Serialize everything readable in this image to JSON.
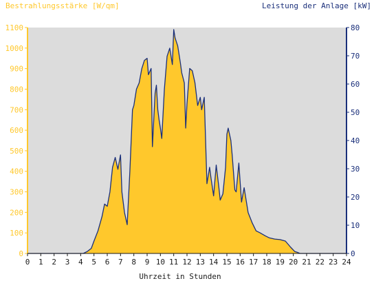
{
  "chart_data": {
    "type": "area",
    "left_axis_title": "Bestrahlungsstärke [W/qm]",
    "right_axis_title": "Leistung der Anlage [kW]",
    "xlabel": "Uhrzeit in Stunden",
    "xlim": [
      0,
      24
    ],
    "x_ticks": [
      "0",
      "1",
      "2",
      "3",
      "4",
      "5",
      "6",
      "7",
      "8",
      "9",
      "10",
      "11",
      "12",
      "13",
      "14",
      "15",
      "16",
      "17",
      "18",
      "19",
      "20",
      "21",
      "22",
      "23",
      "24"
    ],
    "y_left_lim": [
      0,
      1100
    ],
    "y_left_ticks": [
      "0",
      "100",
      "200",
      "300",
      "400",
      "500",
      "600",
      "700",
      "800",
      "900",
      "1000",
      "1100"
    ],
    "y_right_lim": [
      0,
      80
    ],
    "y_right_ticks": [
      "0",
      "10",
      "20",
      "30",
      "40",
      "50",
      "60",
      "70",
      "80"
    ],
    "grid": false,
    "plot_background": "#dcdcdc",
    "colors": {
      "irradiance": "#ffc82c",
      "power": "#1a2f7a",
      "left_axis": "#ffc82c",
      "right_axis": "#1a2f7a",
      "axis_text": "#1a1a1a"
    },
    "x": [
      0,
      4.2,
      4.5,
      4.8,
      5.0,
      5.3,
      5.6,
      5.8,
      6.0,
      6.2,
      6.4,
      6.6,
      6.8,
      7.0,
      7.1,
      7.3,
      7.5,
      7.7,
      7.9,
      8.0,
      8.2,
      8.4,
      8.6,
      8.8,
      9.0,
      9.1,
      9.3,
      9.4,
      9.6,
      9.7,
      9.8,
      9.9,
      10.0,
      10.1,
      10.3,
      10.5,
      10.7,
      10.9,
      11.0,
      11.1,
      11.3,
      11.5,
      11.6,
      11.8,
      11.9,
      12.0,
      12.2,
      12.4,
      12.6,
      12.8,
      13.0,
      13.1,
      13.3,
      13.5,
      13.7,
      13.8,
      14.0,
      14.2,
      14.4,
      14.5,
      14.7,
      14.9,
      15.0,
      15.1,
      15.3,
      15.4,
      15.6,
      15.7,
      15.9,
      16.1,
      16.3,
      16.6,
      16.9,
      17.2,
      17.5,
      17.9,
      18.2,
      18.6,
      19.0,
      19.4,
      19.8,
      20.1,
      20.3,
      20.5,
      24
    ],
    "series": [
      {
        "values": [
          0,
          0,
          10,
          25,
          60,
          110,
          180,
          240,
          230,
          300,
          420,
          470,
          410,
          480,
          300,
          200,
          140,
          400,
          700,
          720,
          800,
          830,
          900,
          940,
          950,
          870,
          900,
          520,
          780,
          820,
          700,
          650,
          610,
          560,
          800,
          960,
          1000,
          920,
          1090,
          1050,
          1010,
          930,
          880,
          830,
          610,
          730,
          900,
          890,
          830,
          720,
          760,
          700,
          760,
          340,
          420,
          370,
          280,
          430,
          320,
          260,
          290,
          420,
          580,
          610,
          550,
          480,
          310,
          300,
          440,
          250,
          320,
          200,
          150,
          110,
          100,
          85,
          75,
          70,
          68,
          60,
          30,
          10,
          5,
          0,
          0
        ]
      },
      {
        "values": [
          0,
          0,
          0.7,
          1.8,
          4.4,
          8,
          13,
          17.5,
          16.7,
          21.8,
          30.5,
          34,
          29.8,
          34.9,
          21.8,
          14.5,
          10.2,
          29.1,
          50.9,
          52.4,
          58.2,
          60.4,
          65.5,
          68.4,
          69.1,
          63.3,
          65.5,
          37.8,
          56.7,
          59.6,
          50.9,
          47.3,
          44.4,
          40.7,
          58.2,
          69.8,
          72.7,
          66.9,
          79.3,
          76.4,
          73.5,
          67.6,
          64,
          60.4,
          44.4,
          53.1,
          65.5,
          64.7,
          60.4,
          52.4,
          55.3,
          50.9,
          55.3,
          24.7,
          30.5,
          26.9,
          20.4,
          31.3,
          23.3,
          18.9,
          21.1,
          30.5,
          42.2,
          44.4,
          40,
          34.9,
          22.5,
          21.8,
          32,
          18.2,
          23.3,
          14.5,
          10.9,
          8,
          7.3,
          6.2,
          5.5,
          5.1,
          4.9,
          4.4,
          2.2,
          0.7,
          0.4,
          0,
          0
        ]
      }
    ]
  }
}
